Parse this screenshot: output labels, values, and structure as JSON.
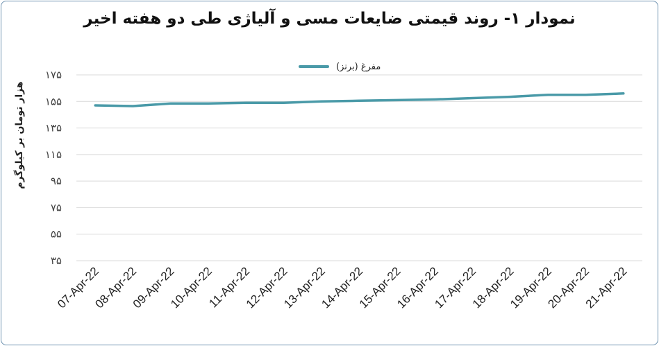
{
  "chart_data": {
    "type": "line",
    "title": "نمودار ۱- روند قیمتی ضایعات مسی و آلیاژی طی دو هفته اخیر",
    "ylabel": "هزار تومان بر کیلوگرم",
    "xlabel": "",
    "ylim": [
      35,
      175
    ],
    "yticks": [
      35,
      55,
      75,
      95,
      115,
      135,
      155,
      175
    ],
    "ytick_labels": [
      "۳۵",
      "۵۵",
      "۷۵",
      "۹۵",
      "۱۱۵",
      "۱۳۵",
      "۱۵۵",
      "۱۷۵"
    ],
    "grid": true,
    "legend_position": "top-center",
    "categories": [
      "07-Apr-22",
      "08-Apr-22",
      "09-Apr-22",
      "10-Apr-22",
      "11-Apr-22",
      "12-Apr-22",
      "13-Apr-22",
      "14-Apr-22",
      "15-Apr-22",
      "16-Apr-22",
      "17-Apr-22",
      "18-Apr-22",
      "19-Apr-22",
      "20-Apr-22",
      "21-Apr-22"
    ],
    "series": [
      {
        "name": "مفرغ (برنز)",
        "color": "#4a9aa8",
        "values": [
          152,
          151.5,
          153.5,
          153.5,
          154,
          154,
          155,
          155.5,
          156,
          156.5,
          157.5,
          158.5,
          160,
          160,
          161
        ]
      }
    ]
  }
}
